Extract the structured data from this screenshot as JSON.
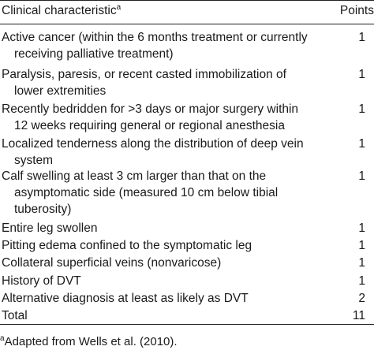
{
  "table": {
    "header": {
      "characteristic": "Clinical characteristic",
      "characteristic_sup": "a",
      "points": "Points"
    },
    "rows": [
      {
        "lines": [
          "Active cancer (within the 6 months treatment or currently",
          "receiving palliative treatment)"
        ],
        "points": "1"
      },
      {
        "lines": [
          "Paralysis, paresis, or recent casted immobilization of",
          "lower extremities"
        ],
        "points": "1"
      },
      {
        "lines": [
          "Recently bedridden for >3 days or major surgery within",
          "12 weeks requiring general or regional anesthesia"
        ],
        "points": "1"
      },
      {
        "lines": [
          "Localized tenderness along the distribution of deep vein",
          "system"
        ],
        "points": "1"
      },
      {
        "lines": [
          "Calf swelling at least 3 cm larger than that on the",
          "asymptomatic side (measured 10 cm below tibial",
          "tuberosity)"
        ],
        "points": "1"
      },
      {
        "lines": [
          "Entire leg swollen"
        ],
        "points": "1"
      },
      {
        "lines": [
          "Pitting edema confined to the symptomatic leg"
        ],
        "points": "1"
      },
      {
        "lines": [
          "Collateral superficial veins (nonvaricose)"
        ],
        "points": "1"
      },
      {
        "lines": [
          "History of DVT"
        ],
        "points": "1"
      },
      {
        "lines": [
          "Alternative diagnosis at least as likely as DVT"
        ],
        "points": "2"
      },
      {
        "lines": [
          "Total"
        ],
        "points": "11"
      }
    ]
  },
  "footnote": {
    "sup": "a",
    "text": "Adapted from Wells et al. (2010)."
  }
}
